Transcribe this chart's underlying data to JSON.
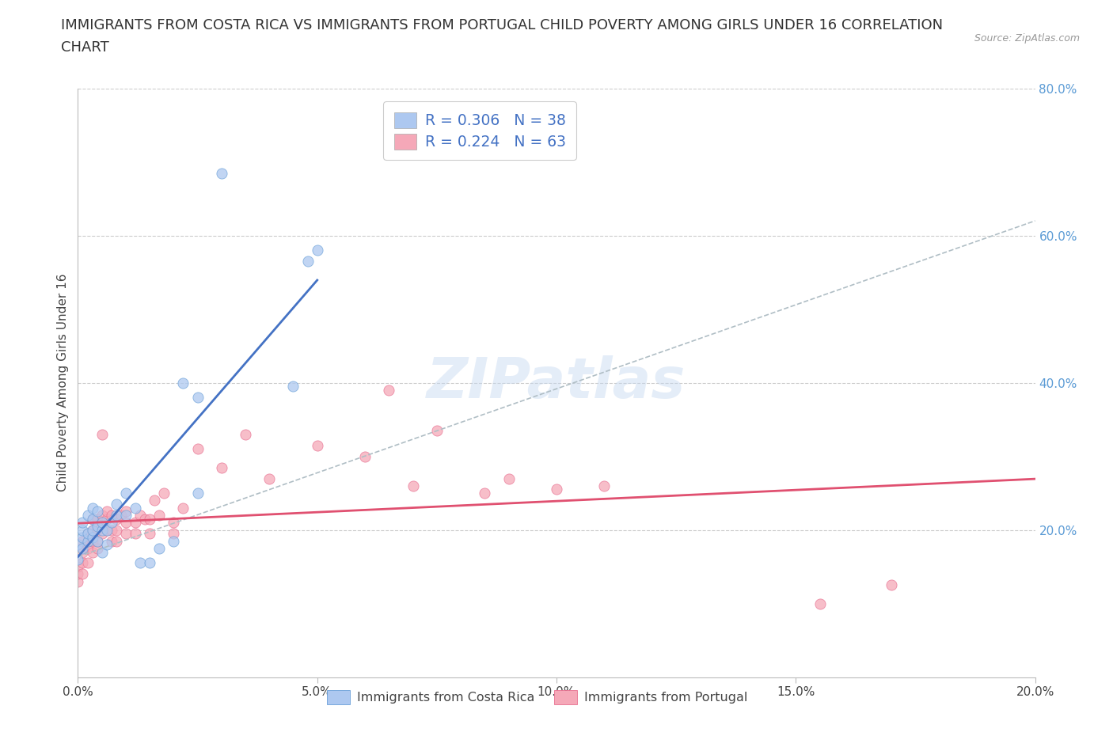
{
  "title_line1": "IMMIGRANTS FROM COSTA RICA VS IMMIGRANTS FROM PORTUGAL CHILD POVERTY AMONG GIRLS UNDER 16 CORRELATION",
  "title_line2": "CHART",
  "source_text": "Source: ZipAtlas.com",
  "ylabel": "Child Poverty Among Girls Under 16",
  "xlim": [
    0.0,
    0.2
  ],
  "ylim": [
    0.0,
    0.8
  ],
  "xtick_labels": [
    "0.0%",
    "5.0%",
    "10.0%",
    "15.0%",
    "20.0%"
  ],
  "xtick_vals": [
    0.0,
    0.05,
    0.1,
    0.15,
    0.2
  ],
  "ytick_labels": [
    "20.0%",
    "40.0%",
    "60.0%",
    "80.0%"
  ],
  "ytick_vals": [
    0.2,
    0.4,
    0.6,
    0.8
  ],
  "series1_color": "#adc8f0",
  "series2_color": "#f5a8b8",
  "series1_edge": "#6aa0d8",
  "series2_edge": "#e87090",
  "line1_color": "#4472c4",
  "line2_color": "#e05070",
  "dash_color": "#b0bec5",
  "R1": 0.306,
  "N1": 38,
  "R2": 0.224,
  "N2": 63,
  "watermark": "ZIPatlas",
  "background_color": "#ffffff",
  "grid_color": "#cccccc",
  "title_fontsize": 13,
  "axis_label_fontsize": 11,
  "tick_fontsize": 11,
  "marker_size": 90,
  "costa_rica_x": [
    0.0,
    0.0,
    0.001,
    0.001,
    0.001,
    0.001,
    0.002,
    0.002,
    0.002,
    0.003,
    0.003,
    0.003,
    0.003,
    0.004,
    0.004,
    0.004,
    0.005,
    0.005,
    0.005,
    0.006,
    0.006,
    0.007,
    0.008,
    0.008,
    0.01,
    0.01,
    0.012,
    0.013,
    0.015,
    0.017,
    0.02,
    0.022,
    0.025,
    0.025,
    0.03,
    0.045,
    0.048,
    0.05
  ],
  "costa_rica_y": [
    0.18,
    0.16,
    0.175,
    0.19,
    0.2,
    0.21,
    0.185,
    0.195,
    0.22,
    0.19,
    0.2,
    0.215,
    0.23,
    0.185,
    0.205,
    0.225,
    0.17,
    0.2,
    0.21,
    0.18,
    0.2,
    0.21,
    0.22,
    0.235,
    0.22,
    0.25,
    0.23,
    0.155,
    0.155,
    0.175,
    0.185,
    0.4,
    0.25,
    0.38,
    0.685,
    0.395,
    0.565,
    0.58
  ],
  "portugal_x": [
    0.0,
    0.0,
    0.0,
    0.001,
    0.001,
    0.001,
    0.001,
    0.002,
    0.002,
    0.002,
    0.002,
    0.003,
    0.003,
    0.003,
    0.003,
    0.004,
    0.004,
    0.004,
    0.004,
    0.005,
    0.005,
    0.005,
    0.005,
    0.006,
    0.006,
    0.006,
    0.007,
    0.007,
    0.007,
    0.008,
    0.008,
    0.008,
    0.009,
    0.01,
    0.01,
    0.01,
    0.012,
    0.012,
    0.013,
    0.014,
    0.015,
    0.015,
    0.016,
    0.017,
    0.018,
    0.02,
    0.02,
    0.022,
    0.025,
    0.03,
    0.035,
    0.04,
    0.05,
    0.06,
    0.065,
    0.07,
    0.075,
    0.085,
    0.09,
    0.1,
    0.11,
    0.155,
    0.17
  ],
  "portugal_y": [
    0.13,
    0.14,
    0.15,
    0.14,
    0.155,
    0.17,
    0.185,
    0.155,
    0.175,
    0.185,
    0.195,
    0.17,
    0.185,
    0.2,
    0.215,
    0.175,
    0.185,
    0.2,
    0.215,
    0.195,
    0.21,
    0.22,
    0.33,
    0.2,
    0.215,
    0.225,
    0.185,
    0.2,
    0.22,
    0.185,
    0.2,
    0.215,
    0.22,
    0.195,
    0.21,
    0.225,
    0.195,
    0.21,
    0.22,
    0.215,
    0.195,
    0.215,
    0.24,
    0.22,
    0.25,
    0.195,
    0.21,
    0.23,
    0.31,
    0.285,
    0.33,
    0.27,
    0.315,
    0.3,
    0.39,
    0.26,
    0.335,
    0.25,
    0.27,
    0.255,
    0.26,
    0.1,
    0.125
  ],
  "legend_entries": [
    {
      "label": "R = 0.306   N = 38",
      "color": "#adc8f0"
    },
    {
      "label": "R = 0.224   N = 63",
      "color": "#f5a8b8"
    }
  ]
}
